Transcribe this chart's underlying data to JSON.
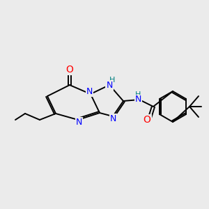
{
  "bg_color": "#ebebeb",
  "bond_color": "#000000",
  "bond_width": 1.4,
  "atom_colors": {
    "N": "#0000ff",
    "O": "#ff0000",
    "H_on_N": "#008080"
  },
  "font_size_atom": 9
}
